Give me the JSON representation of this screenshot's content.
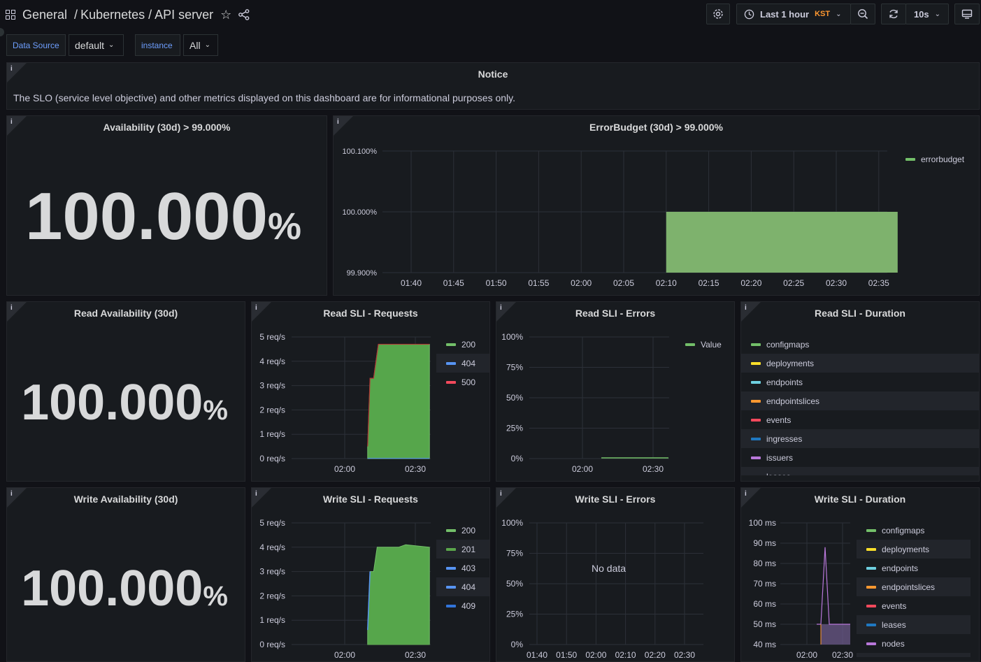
{
  "header": {
    "breadcrumb_folder": "General",
    "breadcrumb_sep": "/",
    "breadcrumb_dashboard": "Kubernetes / API server",
    "time_range": "Last 1 hour",
    "timezone": "KST",
    "refresh": "10s"
  },
  "variables": [
    {
      "label": "Data Source",
      "value": "default"
    },
    {
      "label": "instance",
      "value": "All"
    }
  ],
  "panels": {
    "notice": {
      "title": "Notice",
      "text": "The SLO (service level objective) and other metrics displayed on this dashboard are for informational purposes only."
    },
    "availability": {
      "title": "Availability (30d) > 99.000%",
      "value": "100.000",
      "unit": "%"
    },
    "errorbudget": {
      "title": "ErrorBudget (30d) > 99.000%",
      "legend": [
        "errorbudget"
      ]
    },
    "read_availability": {
      "title": "Read Availability (30d)",
      "value": "100.000",
      "unit": "%"
    },
    "read_requests": {
      "title": "Read SLI - Requests",
      "legend": [
        "200",
        "404",
        "500"
      ]
    },
    "read_errors": {
      "title": "Read SLI - Errors",
      "legend": [
        "Value"
      ]
    },
    "read_duration": {
      "title": "Read SLI - Duration",
      "legend": [
        "configmaps",
        "deployments",
        "endpoints",
        "endpointslices",
        "events",
        "ingresses",
        "issuers",
        "leases"
      ]
    },
    "write_availability": {
      "title": "Write Availability (30d)",
      "value": "100.000",
      "unit": "%"
    },
    "write_requests": {
      "title": "Write SLI - Requests",
      "legend": [
        "200",
        "201",
        "403",
        "404",
        "409"
      ]
    },
    "write_errors": {
      "title": "Write SLI - Errors",
      "no_data": "No data"
    },
    "write_duration": {
      "title": "Write SLI - Duration",
      "legend": [
        "configmaps",
        "deployments",
        "endpoints",
        "endpointslices",
        "events",
        "leases",
        "nodes"
      ]
    }
  },
  "colors": {
    "green": "#73bf69",
    "yellow": "#fade2a",
    "blue": "#5794f2",
    "orange": "#ff9830",
    "red": "#f2495c",
    "darkblue": "#1f78c1",
    "purple": "#b877d9",
    "cyan": "#8ab8ff"
  },
  "chart_data": [
    {
      "type": "area",
      "title": "ErrorBudget (30d) > 99.000%",
      "x": [
        "01:40",
        "01:45",
        "01:50",
        "01:55",
        "02:00",
        "02:05",
        "02:10",
        "02:15",
        "02:20",
        "02:25",
        "02:30",
        "02:35"
      ],
      "yticks": [
        "99.900%",
        "100.000%",
        "100.100%"
      ],
      "ylim": [
        99.9,
        100.1
      ],
      "series": [
        {
          "name": "errorbudget",
          "start": "02:10",
          "end": "02:36",
          "value": 100.0
        }
      ],
      "legend": "right"
    },
    {
      "type": "area",
      "title": "Read SLI - Requests",
      "x_ticks": [
        "02:00",
        "02:30"
      ],
      "yticks": [
        "0 req/s",
        "1 req/s",
        "2 req/s",
        "3 req/s",
        "4 req/s",
        "5 req/s"
      ],
      "ylim": [
        0,
        5
      ],
      "series": [
        {
          "name": "200",
          "values": [
            [
              2.0,
              0.5
            ],
            [
              3.0,
              3.3
            ],
            [
              4.5,
              3.3
            ],
            [
              6.5,
              4.7
            ],
            [
              28,
              4.7
            ]
          ]
        },
        {
          "name": "404",
          "values": [
            [
              2.0,
              0.01
            ],
            [
              28,
              0.01
            ]
          ]
        },
        {
          "name": "500",
          "values": [
            [
              2.0,
              0.0
            ],
            [
              28,
              0.0
            ]
          ]
        }
      ]
    },
    {
      "type": "line",
      "title": "Read SLI - Errors",
      "x_ticks": [
        "02:00",
        "02:30"
      ],
      "yticks": [
        "0%",
        "25%",
        "50%",
        "75%",
        "100%"
      ],
      "ylim": [
        0,
        100
      ],
      "series": [
        {
          "name": "Value",
          "values": [
            [
              10,
              0
            ],
            [
              37,
              0
            ]
          ]
        }
      ]
    },
    {
      "type": "area",
      "title": "Write SLI - Requests",
      "x_ticks": [
        "02:00",
        "02:30"
      ],
      "yticks": [
        "0 req/s",
        "1 req/s",
        "2 req/s",
        "3 req/s",
        "4 req/s",
        "5 req/s"
      ],
      "ylim": [
        0,
        5
      ],
      "series": [
        {
          "name": "200",
          "values": [
            [
              2.0,
              0.6
            ],
            [
              3.0,
              3.0
            ],
            [
              4.5,
              3.0
            ],
            [
              6.0,
              4.0
            ],
            [
              15,
              4.0
            ],
            [
              18,
              4.1
            ],
            [
              28,
              4.0
            ]
          ]
        },
        {
          "name": "201",
          "values": [
            [
              2.0,
              0.01
            ],
            [
              28,
              0.01
            ]
          ]
        },
        {
          "name": "403",
          "values": []
        },
        {
          "name": "404",
          "values": []
        },
        {
          "name": "409",
          "values": []
        }
      ]
    },
    {
      "type": "line",
      "title": "Write SLI - Errors",
      "x_ticks": [
        "01:40",
        "01:50",
        "02:00",
        "02:10",
        "02:20",
        "02:30"
      ],
      "yticks": [
        "0%",
        "25%",
        "50%",
        "75%",
        "100%"
      ],
      "series": []
    },
    {
      "type": "area",
      "title": "Write SLI - Duration",
      "x_ticks": [
        "02:00",
        "02:30"
      ],
      "yticks": [
        "40 ms",
        "50 ms",
        "60 ms",
        "70 ms",
        "80 ms",
        "90 ms",
        "100 ms"
      ],
      "ylim": [
        40,
        100
      ],
      "series": [
        {
          "name": "nodes",
          "values": [
            [
              0,
              50
            ],
            [
              1,
              50
            ],
            [
              2,
              88
            ],
            [
              3,
              50
            ],
            [
              8,
              50
            ]
          ]
        }
      ]
    }
  ]
}
